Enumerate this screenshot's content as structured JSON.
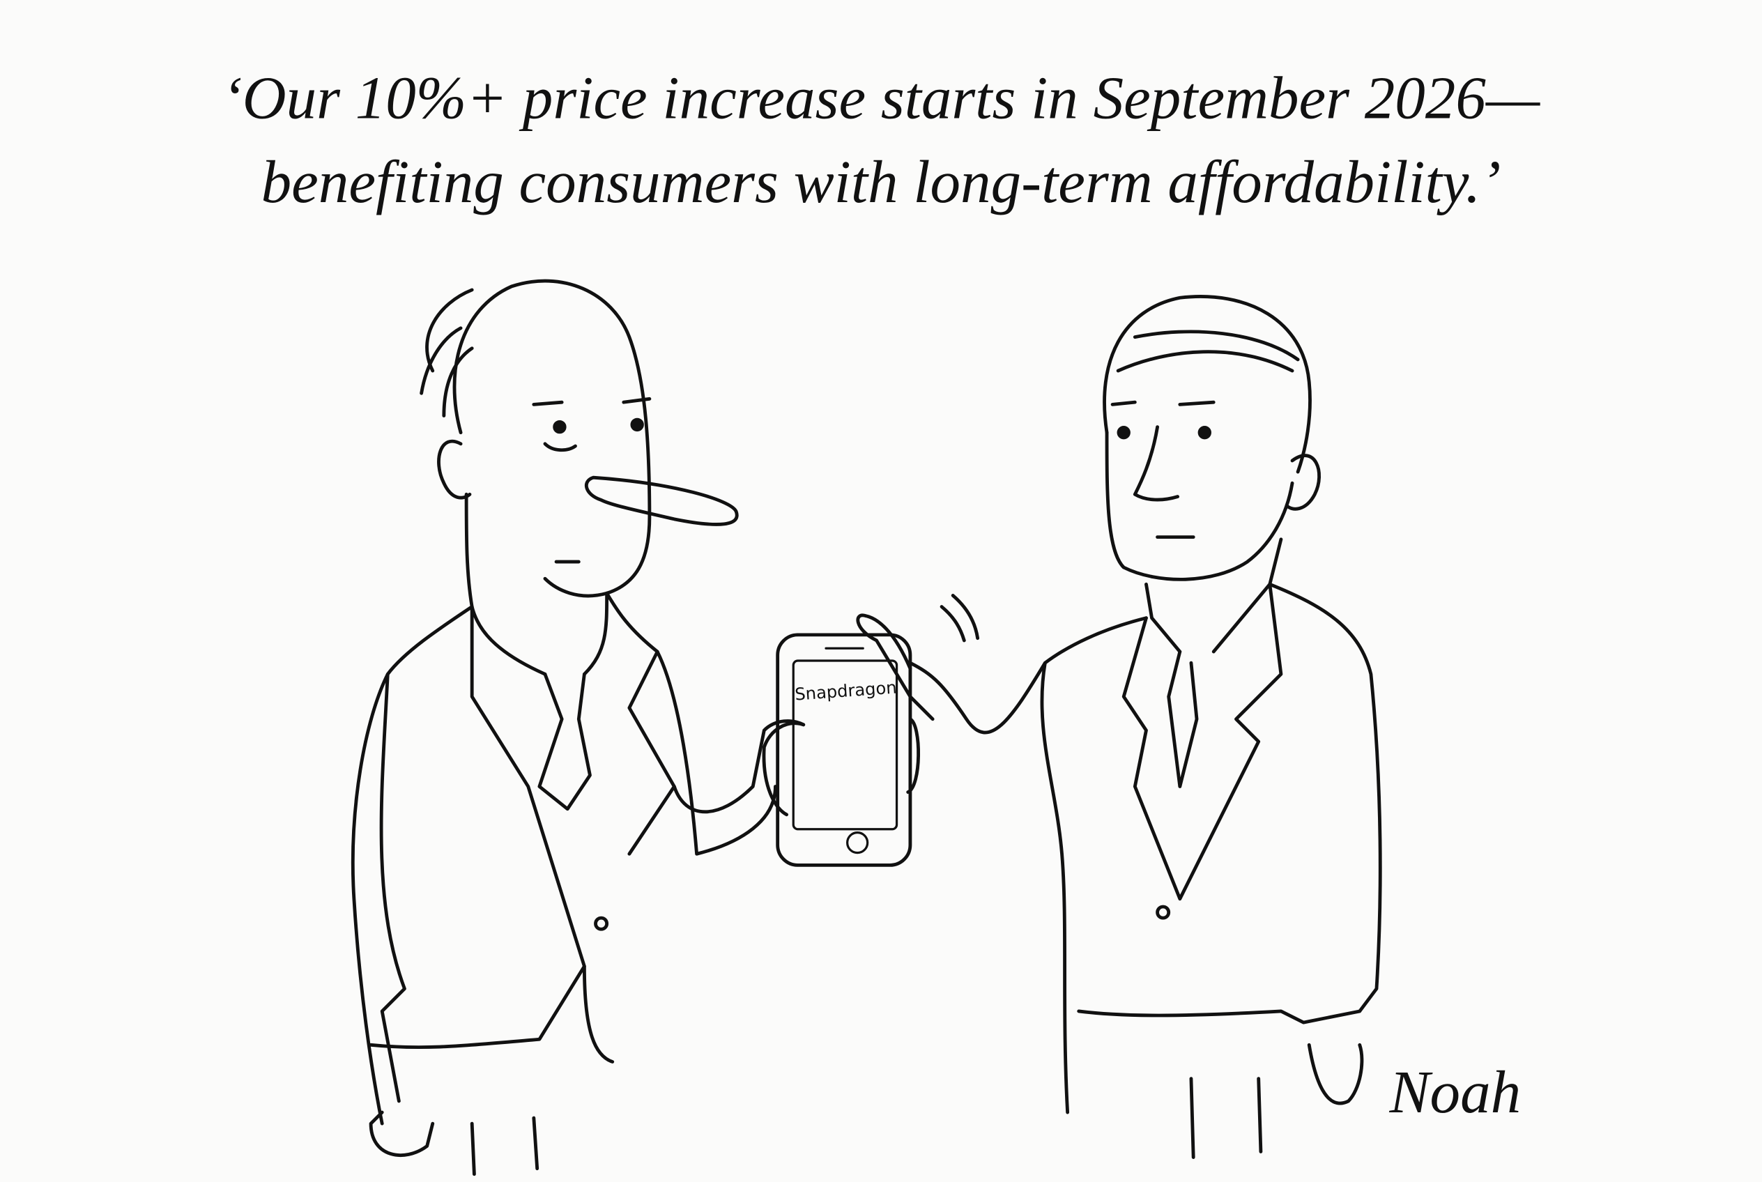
{
  "caption": {
    "lines": [
      "‘Our 10%+ price increase starts in September 2026—",
      "benefiting consumers with long-term affordability.’"
    ]
  },
  "phone": {
    "screen_text": "Snapdragon"
  },
  "signature": "Noah"
}
